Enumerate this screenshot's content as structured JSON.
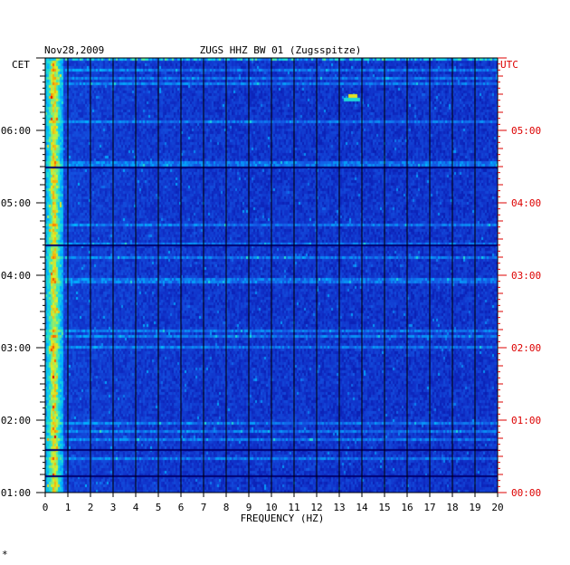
{
  "chart_data": {
    "type": "heatmap",
    "date_label": "Nov28,2009",
    "title": "ZUGS HHZ BW 01 (Zugsspitze)",
    "left_tz_label": "CET",
    "right_tz_label": "UTC",
    "xlabel": "FREQUENCY (HZ)",
    "x_ticks": [
      0,
      1,
      2,
      3,
      4,
      5,
      6,
      7,
      8,
      9,
      10,
      11,
      12,
      13,
      14,
      15,
      16,
      17,
      18,
      19,
      20
    ],
    "xlim": [
      0,
      20
    ],
    "left_time_ticks": [
      "06:00",
      "05:00",
      "04:00",
      "03:00",
      "02:00",
      "01:00"
    ],
    "right_time_ticks": [
      "05:00",
      "04:00",
      "03:00",
      "02:00",
      "01:00",
      "00:00"
    ],
    "ylim_hours": [
      1,
      7
    ],
    "grid": true,
    "colors": {
      "left_axis": "#000000",
      "right_axis": "#dd0000",
      "background_spectrum": "#1030c8",
      "low_freq_energy": "#00c8ff",
      "peak": "#ff0000"
    },
    "corner_mark": "*"
  }
}
